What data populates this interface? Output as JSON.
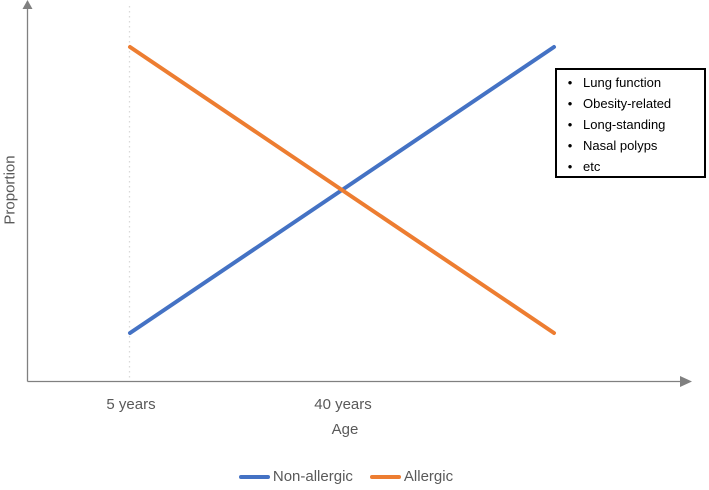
{
  "chart_data": {
    "type": "line",
    "title": "",
    "xlabel": "Age",
    "ylabel": "Proportion",
    "x_tick_labels": [
      "5 years",
      "40 years"
    ],
    "x_tick_positions": [
      0,
      0.5
    ],
    "x": [
      0,
      1
    ],
    "ylim": [
      0,
      1
    ],
    "series": [
      {
        "name": "Non-allergic",
        "color": "#4472C4",
        "values": [
          0,
          1
        ]
      },
      {
        "name": "Allergic",
        "color": "#ED7D31",
        "values": [
          1,
          0
        ]
      }
    ],
    "legend_position": "bottom",
    "gridline": {
      "style": "dotted-vertical",
      "at_tick": "5 years"
    },
    "axes_have_arrowheads": true,
    "annotation_box": {
      "bullet": "•",
      "items": [
        "Lung function",
        "Obesity-related",
        "Long-standing",
        "Nasal polyps",
        "etc"
      ]
    }
  },
  "colors": {
    "non_allergic_line": "#4472C4",
    "allergic_line": "#ED7D31",
    "axis": "#808080",
    "gridline": "#D9D9D9",
    "axis_text": "#595959",
    "annotation_text": "#000000",
    "annotation_border": "#000000",
    "background": "#FFFFFF"
  }
}
